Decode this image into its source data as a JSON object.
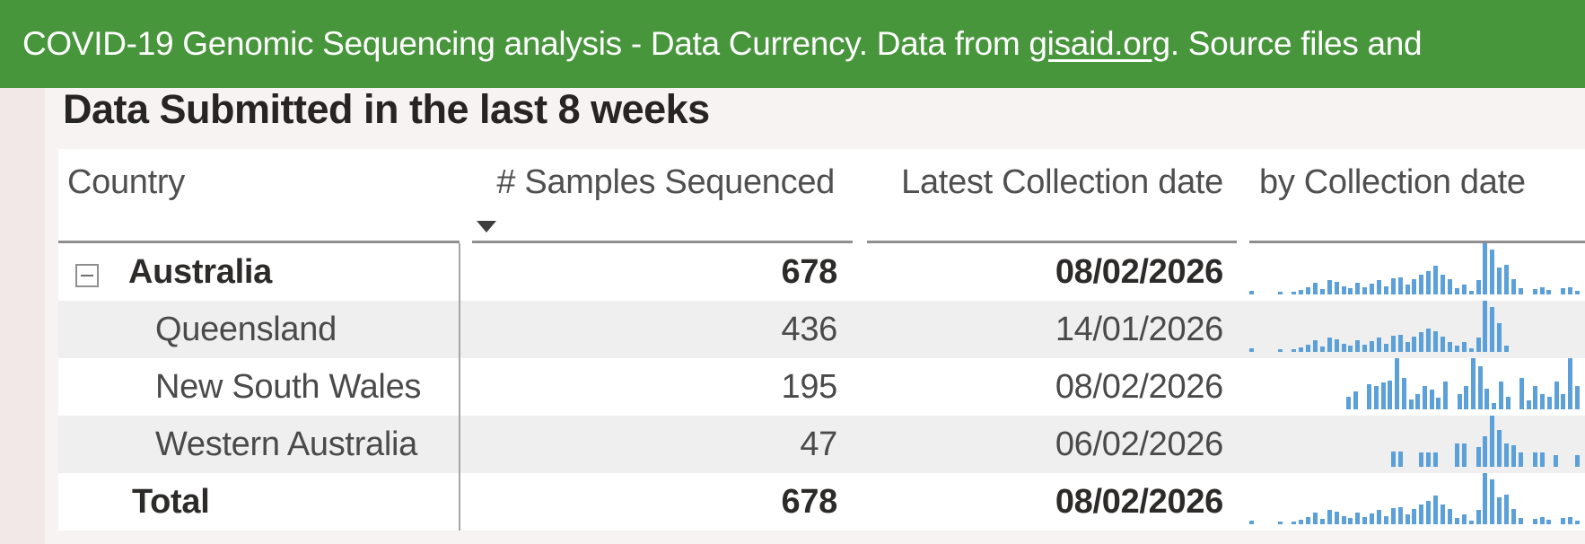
{
  "banner": {
    "text_prefix": "COVID-19 Genomic Sequencing analysis - Data Currency. Data from ",
    "link_text": "gisaid.org",
    "text_suffix": ". Source files and",
    "bg_color": "#48963c"
  },
  "page": {
    "title": "Data Submitted in the last 8 weeks",
    "bg_color": "#f6f3f2",
    "accent_strip_color": "#f2e8e7"
  },
  "table": {
    "columns": [
      {
        "label": "Country"
      },
      {
        "label": "# Samples Sequenced",
        "sorted": "descending"
      },
      {
        "label": "Latest Collection date"
      },
      {
        "label": "by Collection date"
      }
    ],
    "sort_indicator": "desc-triangle",
    "spark_color": "#5ba0d8",
    "rows": [
      {
        "name": "Australia",
        "level": 0,
        "bold": true,
        "expandable": true,
        "is_total": false,
        "samples": "678",
        "latest": "08/02/2026",
        "spark": [
          7,
          0,
          0,
          0,
          6,
          0,
          5,
          9,
          14,
          22,
          11,
          28,
          25,
          16,
          12,
          22,
          14,
          21,
          28,
          16,
          31,
          34,
          20,
          30,
          38,
          46,
          56,
          38,
          30,
          13,
          20,
          7,
          28,
          100,
          88,
          52,
          58,
          30,
          13,
          0,
          10,
          14,
          8,
          0,
          12,
          14,
          7
        ]
      },
      {
        "name": "Queensland",
        "level": 1,
        "bold": false,
        "expandable": false,
        "is_total": false,
        "samples": "436",
        "latest": "14/01/2026",
        "spark": [
          7,
          0,
          0,
          0,
          6,
          0,
          5,
          9,
          14,
          22,
          11,
          28,
          25,
          16,
          12,
          22,
          14,
          21,
          28,
          16,
          31,
          34,
          20,
          30,
          38,
          46,
          40,
          30,
          20,
          13,
          20,
          7,
          28,
          100,
          88,
          56,
          12,
          0,
          0,
          0,
          0,
          0,
          0,
          0,
          0,
          0,
          0
        ]
      },
      {
        "name": "New South Wales",
        "level": 1,
        "bold": false,
        "expandable": false,
        "is_total": false,
        "samples": "195",
        "latest": "08/02/2026",
        "spark": [
          0,
          0,
          0,
          0,
          0,
          0,
          0,
          0,
          0,
          0,
          0,
          0,
          0,
          0,
          25,
          35,
          0,
          50,
          45,
          52,
          56,
          100,
          62,
          20,
          30,
          46,
          38,
          22,
          55,
          0,
          30,
          46,
          100,
          85,
          40,
          12,
          55,
          25,
          0,
          62,
          18,
          45,
          30,
          25,
          55,
          30,
          100,
          45
        ]
      },
      {
        "name": "Western Australia",
        "level": 1,
        "bold": false,
        "expandable": false,
        "is_total": false,
        "samples": "47",
        "latest": "06/02/2026",
        "spark": [
          0,
          0,
          0,
          0,
          0,
          0,
          0,
          0,
          0,
          0,
          0,
          0,
          0,
          0,
          0,
          0,
          0,
          0,
          0,
          0,
          30,
          30,
          0,
          0,
          28,
          28,
          28,
          0,
          0,
          45,
          45,
          0,
          38,
          60,
          100,
          72,
          45,
          42,
          28,
          0,
          28,
          28,
          0,
          22,
          0,
          0,
          22
        ]
      },
      {
        "name": "Total",
        "level": 0,
        "bold": true,
        "expandable": false,
        "is_total": true,
        "samples": "678",
        "latest": "08/02/2026",
        "spark": [
          7,
          0,
          0,
          0,
          6,
          0,
          5,
          9,
          14,
          22,
          11,
          28,
          25,
          16,
          12,
          22,
          14,
          21,
          28,
          16,
          31,
          34,
          20,
          30,
          38,
          46,
          56,
          38,
          30,
          13,
          20,
          7,
          28,
          100,
          88,
          52,
          58,
          30,
          13,
          0,
          10,
          14,
          8,
          0,
          12,
          14,
          7
        ]
      }
    ]
  }
}
